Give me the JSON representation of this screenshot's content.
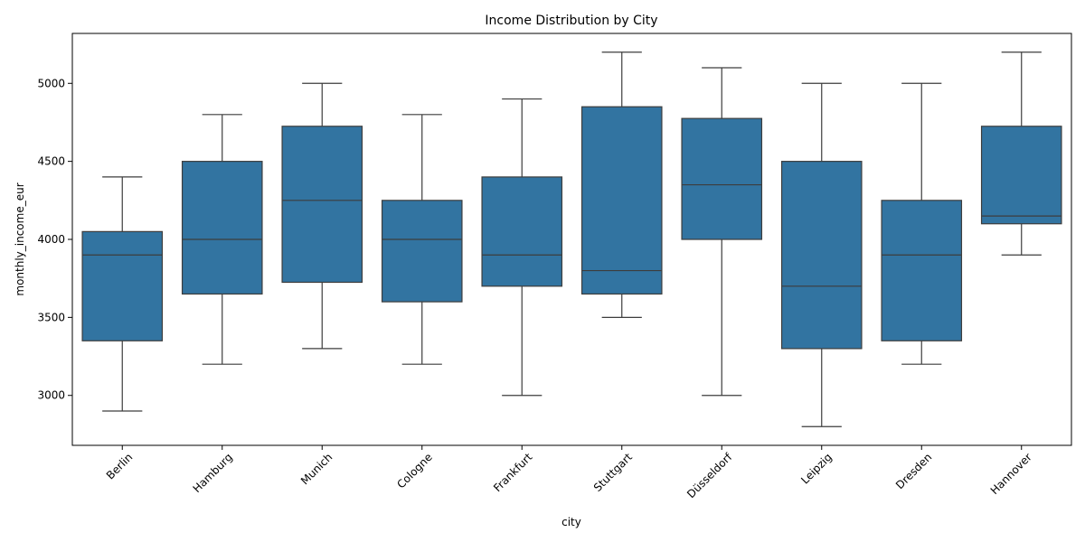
{
  "chart_data": {
    "type": "box",
    "title": "Income Distribution by City",
    "xlabel": "city",
    "ylabel": "monthly_income_eur",
    "ylim": [
      2680,
      5320
    ],
    "yticks": [
      3000,
      3500,
      4000,
      4500,
      5000
    ],
    "grid": false,
    "legend": "none",
    "box_color": "#3274a1",
    "line_color": "#3d3d3d",
    "categories": [
      "Berlin",
      "Hamburg",
      "Munich",
      "Cologne",
      "Frankfurt",
      "Stuttgart",
      "Düsseldorf",
      "Leipzig",
      "Dresden",
      "Hannover"
    ],
    "boxes": [
      {
        "city": "Berlin",
        "whisker_low": 2900,
        "q1": 3350,
        "median": 3900,
        "q3": 4050,
        "whisker_high": 4400
      },
      {
        "city": "Hamburg",
        "whisker_low": 3200,
        "q1": 3650,
        "median": 4000,
        "q3": 4500,
        "whisker_high": 4800
      },
      {
        "city": "Munich",
        "whisker_low": 3300,
        "q1": 3725,
        "median": 4250,
        "q3": 4725,
        "whisker_high": 5000
      },
      {
        "city": "Cologne",
        "whisker_low": 3200,
        "q1": 3600,
        "median": 4000,
        "q3": 4250,
        "whisker_high": 4800
      },
      {
        "city": "Frankfurt",
        "whisker_low": 3000,
        "q1": 3700,
        "median": 3900,
        "q3": 4400,
        "whisker_high": 4900
      },
      {
        "city": "Stuttgart",
        "whisker_low": 3500,
        "q1": 3650,
        "median": 3800,
        "q3": 4850,
        "whisker_high": 5200
      },
      {
        "city": "Düsseldorf",
        "whisker_low": 3000,
        "q1": 4000,
        "median": 4350,
        "q3": 4775,
        "whisker_high": 5100
      },
      {
        "city": "Leipzig",
        "whisker_low": 2800,
        "q1": 3300,
        "median": 3700,
        "q3": 4500,
        "whisker_high": 5000
      },
      {
        "city": "Dresden",
        "whisker_low": 3200,
        "q1": 3350,
        "median": 3900,
        "q3": 4250,
        "whisker_high": 5000
      },
      {
        "city": "Hannover",
        "whisker_low": 3900,
        "q1": 4100,
        "median": 4150,
        "q3": 4725,
        "whisker_high": 5200
      }
    ]
  }
}
